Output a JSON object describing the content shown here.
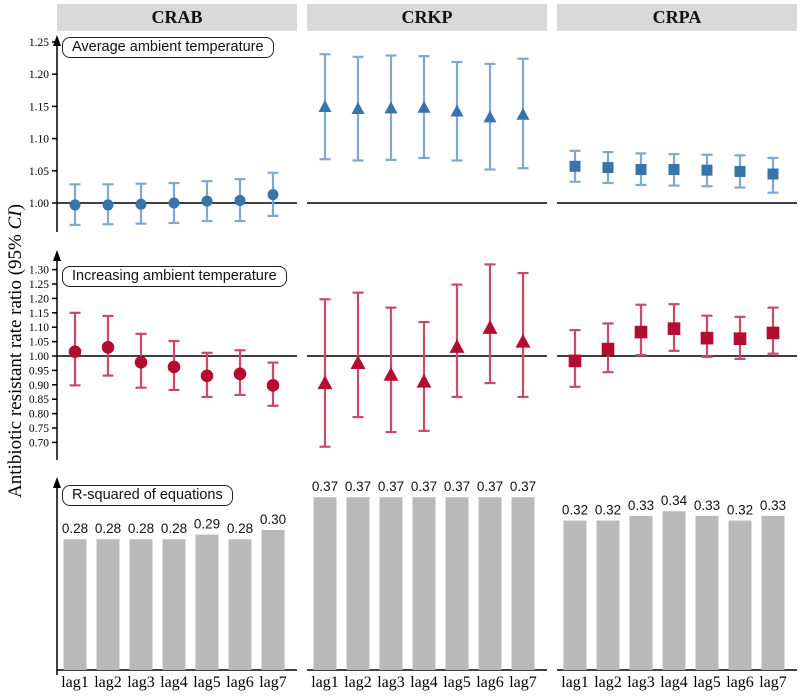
{
  "figure": {
    "y_axis_label_prefix": "Antibiotic resistant rate ratio (95% ",
    "y_axis_label_italic": "CI",
    "y_axis_label_suffix": ")",
    "column_headers": [
      "CRAB",
      "CRKP",
      "CRPA"
    ],
    "x_tick_labels": [
      "lag1",
      "lag2",
      "lag3",
      "lag4",
      "lag5",
      "lag6",
      "lag7"
    ]
  },
  "colors": {
    "header_bg": "#d9d9d9",
    "blue_marker": "#3873aa",
    "blue_whisker": "#7fa9d0",
    "red_marker": "#b50d31",
    "red_whisker": "#cb4a67",
    "bar_fill": "#b9b9b9",
    "axis": "#000000"
  },
  "chart_data": [
    {
      "type": "scatter",
      "title": "Average ambient temperature",
      "categories": [
        "lag1",
        "lag2",
        "lag3",
        "lag4",
        "lag5",
        "lag6",
        "lag7"
      ],
      "yticks": [
        1.0,
        1.05,
        1.1,
        1.15,
        1.2,
        1.25
      ],
      "ylim": [
        0.95,
        1.26
      ],
      "reference_line": 1.0,
      "marker_color": "#3873aa",
      "whisker_color": "#7fa9d0",
      "series": [
        {
          "name": "CRAB",
          "marker": "circle",
          "values": [
            0.997,
            0.997,
            0.998,
            1.0,
            1.003,
            1.004,
            1.013
          ],
          "ci_low": [
            0.966,
            0.967,
            0.968,
            0.969,
            0.972,
            0.972,
            0.98
          ],
          "ci_high": [
            1.029,
            1.029,
            1.03,
            1.031,
            1.034,
            1.037,
            1.047
          ]
        },
        {
          "name": "CRKP",
          "marker": "triangle",
          "values": [
            1.149,
            1.146,
            1.147,
            1.148,
            1.142,
            1.133,
            1.137
          ],
          "ci_low": [
            1.068,
            1.066,
            1.067,
            1.07,
            1.066,
            1.052,
            1.054
          ],
          "ci_high": [
            1.231,
            1.227,
            1.229,
            1.228,
            1.219,
            1.216,
            1.224
          ]
        },
        {
          "name": "CRPA",
          "marker": "square",
          "values": [
            1.057,
            1.055,
            1.052,
            1.052,
            1.051,
            1.049,
            1.045
          ],
          "ci_low": [
            1.033,
            1.031,
            1.028,
            1.027,
            1.026,
            1.024,
            1.016
          ],
          "ci_high": [
            1.081,
            1.079,
            1.077,
            1.076,
            1.075,
            1.074,
            1.07
          ]
        }
      ]
    },
    {
      "type": "scatter",
      "title": "Increasing ambient temperature",
      "categories": [
        "lag1",
        "lag2",
        "lag3",
        "lag4",
        "lag5",
        "lag6",
        "lag7"
      ],
      "yticks": [
        0.7,
        0.75,
        0.8,
        0.85,
        0.9,
        0.95,
        1.0,
        1.05,
        1.1,
        1.15,
        1.2,
        1.25,
        1.3
      ],
      "ylim": [
        0.665,
        1.345
      ],
      "reference_line": 1.0,
      "marker_color": "#b50d31",
      "whisker_color": "#cb4a67",
      "series": [
        {
          "name": "CRAB",
          "marker": "circle",
          "values": [
            1.015,
            1.03,
            0.978,
            0.962,
            0.931,
            0.938,
            0.898
          ],
          "ci_low": [
            0.898,
            0.932,
            0.89,
            0.882,
            0.858,
            0.865,
            0.827
          ],
          "ci_high": [
            1.15,
            1.139,
            1.077,
            1.052,
            1.011,
            1.02,
            0.977
          ]
        },
        {
          "name": "CRKP",
          "marker": "triangle",
          "values": [
            0.905,
            0.975,
            0.934,
            0.91,
            1.031,
            1.097,
            1.049
          ],
          "ci_low": [
            0.685,
            0.788,
            0.736,
            0.74,
            0.858,
            0.906,
            0.858
          ],
          "ci_high": [
            1.197,
            1.22,
            1.168,
            1.118,
            1.248,
            1.318,
            1.288
          ]
        },
        {
          "name": "CRPA",
          "marker": "square",
          "values": [
            0.983,
            1.024,
            1.083,
            1.095,
            1.062,
            1.06,
            1.08
          ],
          "ci_low": [
            0.893,
            0.944,
            1.003,
            1.018,
            0.997,
            0.99,
            1.008
          ],
          "ci_high": [
            1.09,
            1.113,
            1.178,
            1.18,
            1.14,
            1.136,
            1.168
          ]
        }
      ]
    },
    {
      "type": "bar",
      "title": "R-squared of equations",
      "categories": [
        "lag1",
        "lag2",
        "lag3",
        "lag4",
        "lag5",
        "lag6",
        "lag7"
      ],
      "bar_color": "#b9b9b9",
      "series": [
        {
          "name": "CRAB",
          "values": [
            0.28,
            0.28,
            0.28,
            0.28,
            0.29,
            0.28,
            0.3
          ]
        },
        {
          "name": "CRKP",
          "values": [
            0.37,
            0.37,
            0.37,
            0.37,
            0.37,
            0.37,
            0.37
          ]
        },
        {
          "name": "CRPA",
          "values": [
            0.32,
            0.32,
            0.33,
            0.34,
            0.33,
            0.32,
            0.33
          ]
        }
      ]
    }
  ]
}
